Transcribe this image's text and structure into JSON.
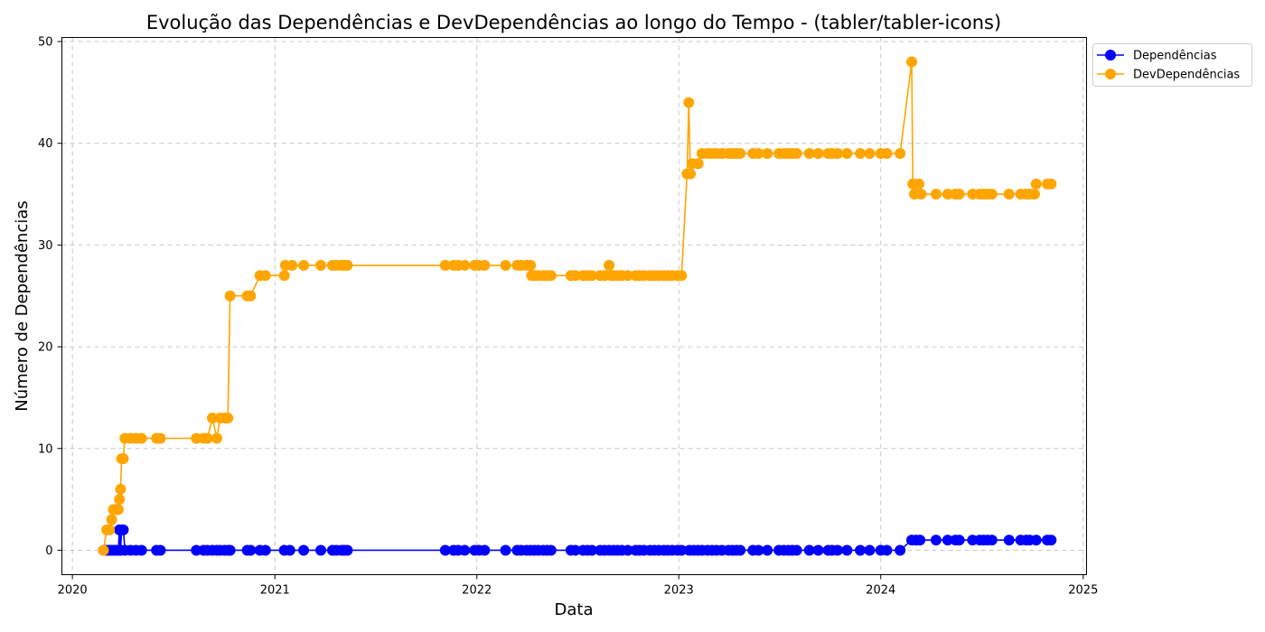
{
  "chart_data": {
    "type": "line",
    "title": "Evolução das Dependências e DevDependências ao longo do Tempo - (tabler/tabler-icons)",
    "xlabel": "Data",
    "ylabel": "Número de Dependências",
    "xlim": [
      "2019-12-13",
      "2025-01-07"
    ],
    "ylim": [
      -2.4,
      50.4
    ],
    "x_ticks": [
      "2020",
      "2021",
      "2022",
      "2023",
      "2024",
      "2025"
    ],
    "x_tick_dates": [
      "2020-01-01",
      "2021-01-01",
      "2022-01-01",
      "2023-01-01",
      "2024-01-01",
      "2025-01-01"
    ],
    "y_ticks": [
      0,
      10,
      20,
      30,
      40,
      50
    ],
    "grid": true,
    "legend_position": "outside-top-right",
    "series": [
      {
        "name": "Dependências",
        "color": "#0000ff",
        "points": [
          [
            "2020-02-26",
            0
          ],
          [
            "2020-03-03",
            0
          ],
          [
            "2020-03-08",
            0
          ],
          [
            "2020-03-12",
            0
          ],
          [
            "2020-03-16",
            0
          ],
          [
            "2020-03-20",
            0
          ],
          [
            "2020-03-24",
            0
          ],
          [
            "2020-03-26",
            2
          ],
          [
            "2020-03-28",
            0
          ],
          [
            "2020-03-30",
            2
          ],
          [
            "2020-04-02",
            2
          ],
          [
            "2020-04-05",
            0
          ],
          [
            "2020-04-15",
            0
          ],
          [
            "2020-04-25",
            0
          ],
          [
            "2020-05-05",
            0
          ],
          [
            "2020-06-01",
            0
          ],
          [
            "2020-06-08",
            0
          ],
          [
            "2020-08-12",
            0
          ],
          [
            "2020-08-25",
            0
          ],
          [
            "2020-09-01",
            0
          ],
          [
            "2020-09-10",
            0
          ],
          [
            "2020-09-18",
            0
          ],
          [
            "2020-09-24",
            0
          ],
          [
            "2020-10-02",
            0
          ],
          [
            "2020-10-08",
            0
          ],
          [
            "2020-10-12",
            0
          ],
          [
            "2020-11-12",
            0
          ],
          [
            "2020-11-18",
            0
          ],
          [
            "2020-12-05",
            0
          ],
          [
            "2020-12-15",
            0
          ],
          [
            "2021-01-18",
            0
          ],
          [
            "2021-01-28",
            0
          ],
          [
            "2021-02-22",
            0
          ],
          [
            "2021-03-25",
            0
          ],
          [
            "2021-04-15",
            0
          ],
          [
            "2021-04-22",
            0
          ],
          [
            "2021-05-01",
            0
          ],
          [
            "2021-05-06",
            0
          ],
          [
            "2021-05-12",
            0
          ],
          [
            "2021-11-05",
            0
          ],
          [
            "2021-11-20",
            0
          ],
          [
            "2021-11-28",
            0
          ],
          [
            "2021-12-10",
            0
          ],
          [
            "2021-12-28",
            0
          ],
          [
            "2022-01-05",
            0
          ],
          [
            "2022-01-15",
            0
          ],
          [
            "2022-02-22",
            0
          ],
          [
            "2022-03-15",
            0
          ],
          [
            "2022-03-22",
            0
          ],
          [
            "2022-04-01",
            0
          ],
          [
            "2022-04-08",
            0
          ],
          [
            "2022-04-15",
            0
          ],
          [
            "2022-04-22",
            0
          ],
          [
            "2022-05-01",
            0
          ],
          [
            "2022-05-08",
            0
          ],
          [
            "2022-05-15",
            0
          ],
          [
            "2022-06-20",
            0
          ],
          [
            "2022-06-28",
            0
          ],
          [
            "2022-07-12",
            0
          ],
          [
            "2022-07-20",
            0
          ],
          [
            "2022-07-28",
            0
          ],
          [
            "2022-08-12",
            0
          ],
          [
            "2022-08-20",
            0
          ],
          [
            "2022-08-28",
            0
          ],
          [
            "2022-09-05",
            0
          ],
          [
            "2022-09-12",
            0
          ],
          [
            "2022-09-20",
            0
          ],
          [
            "2022-10-01",
            0
          ],
          [
            "2022-10-15",
            0
          ],
          [
            "2022-10-22",
            0
          ],
          [
            "2022-10-30",
            0
          ],
          [
            "2022-11-10",
            0
          ],
          [
            "2022-11-18",
            0
          ],
          [
            "2022-11-26",
            0
          ],
          [
            "2022-12-05",
            0
          ],
          [
            "2022-12-12",
            0
          ],
          [
            "2022-12-20",
            0
          ],
          [
            "2022-12-30",
            0
          ],
          [
            "2023-01-06",
            0
          ],
          [
            "2023-01-20",
            0
          ],
          [
            "2023-01-28",
            0
          ],
          [
            "2023-02-05",
            0
          ],
          [
            "2023-02-12",
            0
          ],
          [
            "2023-02-22",
            0
          ],
          [
            "2023-03-02",
            0
          ],
          [
            "2023-03-10",
            0
          ],
          [
            "2023-03-20",
            0
          ],
          [
            "2023-04-01",
            0
          ],
          [
            "2023-04-08",
            0
          ],
          [
            "2023-04-15",
            0
          ],
          [
            "2023-04-22",
            0
          ],
          [
            "2023-05-15",
            0
          ],
          [
            "2023-05-25",
            0
          ],
          [
            "2023-06-10",
            0
          ],
          [
            "2023-07-01",
            0
          ],
          [
            "2023-07-10",
            0
          ],
          [
            "2023-07-18",
            0
          ],
          [
            "2023-07-25",
            0
          ],
          [
            "2023-08-02",
            0
          ],
          [
            "2023-08-25",
            0
          ],
          [
            "2023-09-10",
            0
          ],
          [
            "2023-09-28",
            0
          ],
          [
            "2023-10-05",
            0
          ],
          [
            "2023-10-15",
            0
          ],
          [
            "2023-11-01",
            0
          ],
          [
            "2023-11-25",
            0
          ],
          [
            "2023-12-12",
            0
          ],
          [
            "2024-01-01",
            0
          ],
          [
            "2024-01-12",
            0
          ],
          [
            "2024-02-05",
            0
          ],
          [
            "2024-02-26",
            1
          ],
          [
            "2024-03-05",
            1
          ],
          [
            "2024-03-12",
            1
          ],
          [
            "2024-04-10",
            1
          ],
          [
            "2024-05-01",
            1
          ],
          [
            "2024-05-15",
            1
          ],
          [
            "2024-05-22",
            1
          ],
          [
            "2024-06-15",
            1
          ],
          [
            "2024-06-28",
            1
          ],
          [
            "2024-07-05",
            1
          ],
          [
            "2024-07-12",
            1
          ],
          [
            "2024-07-20",
            1
          ],
          [
            "2024-08-20",
            1
          ],
          [
            "2024-09-10",
            1
          ],
          [
            "2024-09-20",
            1
          ],
          [
            "2024-09-26",
            1
          ],
          [
            "2024-10-08",
            1
          ],
          [
            "2024-10-28",
            1
          ],
          [
            "2024-11-04",
            1
          ]
        ]
      },
      {
        "name": "DevDependências",
        "color": "#ffa500",
        "points": [
          [
            "2020-02-26",
            0
          ],
          [
            "2020-03-03",
            2
          ],
          [
            "2020-03-08",
            2
          ],
          [
            "2020-03-12",
            3
          ],
          [
            "2020-03-15",
            4
          ],
          [
            "2020-03-20",
            4
          ],
          [
            "2020-03-24",
            4
          ],
          [
            "2020-03-26",
            5
          ],
          [
            "2020-03-28",
            6
          ],
          [
            "2020-03-30",
            9
          ],
          [
            "2020-04-02",
            9
          ],
          [
            "2020-04-05",
            11
          ],
          [
            "2020-04-15",
            11
          ],
          [
            "2020-04-25",
            11
          ],
          [
            "2020-05-05",
            11
          ],
          [
            "2020-06-01",
            11
          ],
          [
            "2020-06-08",
            11
          ],
          [
            "2020-08-12",
            11
          ],
          [
            "2020-08-25",
            11
          ],
          [
            "2020-09-01",
            11
          ],
          [
            "2020-09-10",
            13
          ],
          [
            "2020-09-18",
            11
          ],
          [
            "2020-09-24",
            13
          ],
          [
            "2020-10-02",
            13
          ],
          [
            "2020-10-08",
            13
          ],
          [
            "2020-10-12",
            25
          ],
          [
            "2020-11-12",
            25
          ],
          [
            "2020-11-18",
            25
          ],
          [
            "2020-12-05",
            27
          ],
          [
            "2020-12-15",
            27
          ],
          [
            "2021-01-18",
            27
          ],
          [
            "2021-01-20",
            28
          ],
          [
            "2021-02-01",
            28
          ],
          [
            "2021-02-22",
            28
          ],
          [
            "2021-03-25",
            28
          ],
          [
            "2021-04-15",
            28
          ],
          [
            "2021-04-22",
            28
          ],
          [
            "2021-05-01",
            28
          ],
          [
            "2021-05-06",
            28
          ],
          [
            "2021-05-12",
            28
          ],
          [
            "2021-11-05",
            28
          ],
          [
            "2021-11-20",
            28
          ],
          [
            "2021-11-28",
            28
          ],
          [
            "2021-12-10",
            28
          ],
          [
            "2021-12-28",
            28
          ],
          [
            "2022-01-05",
            28
          ],
          [
            "2022-01-15",
            28
          ],
          [
            "2022-02-22",
            28
          ],
          [
            "2022-03-15",
            28
          ],
          [
            "2022-03-22",
            28
          ],
          [
            "2022-04-01",
            28
          ],
          [
            "2022-04-08",
            28
          ],
          [
            "2022-04-10",
            27
          ],
          [
            "2022-04-15",
            27
          ],
          [
            "2022-04-22",
            27
          ],
          [
            "2022-05-01",
            27
          ],
          [
            "2022-05-08",
            27
          ],
          [
            "2022-05-15",
            27
          ],
          [
            "2022-06-20",
            27
          ],
          [
            "2022-06-28",
            27
          ],
          [
            "2022-07-12",
            27
          ],
          [
            "2022-07-20",
            27
          ],
          [
            "2022-07-28",
            27
          ],
          [
            "2022-08-12",
            27
          ],
          [
            "2022-08-20",
            27
          ],
          [
            "2022-08-28",
            28
          ],
          [
            "2022-09-01",
            27
          ],
          [
            "2022-09-05",
            27
          ],
          [
            "2022-09-12",
            27
          ],
          [
            "2022-09-20",
            27
          ],
          [
            "2022-10-01",
            27
          ],
          [
            "2022-10-15",
            27
          ],
          [
            "2022-10-22",
            27
          ],
          [
            "2022-10-30",
            27
          ],
          [
            "2022-11-10",
            27
          ],
          [
            "2022-11-18",
            27
          ],
          [
            "2022-11-26",
            27
          ],
          [
            "2022-12-05",
            27
          ],
          [
            "2022-12-12",
            27
          ],
          [
            "2022-12-20",
            27
          ],
          [
            "2022-12-30",
            27
          ],
          [
            "2023-01-06",
            27
          ],
          [
            "2023-01-16",
            37
          ],
          [
            "2023-01-19",
            44
          ],
          [
            "2023-01-22",
            37
          ],
          [
            "2023-01-25",
            38
          ],
          [
            "2023-02-05",
            38
          ],
          [
            "2023-02-12",
            39
          ],
          [
            "2023-02-22",
            39
          ],
          [
            "2023-03-02",
            39
          ],
          [
            "2023-03-10",
            39
          ],
          [
            "2023-03-20",
            39
          ],
          [
            "2023-04-01",
            39
          ],
          [
            "2023-04-08",
            39
          ],
          [
            "2023-04-15",
            39
          ],
          [
            "2023-04-22",
            39
          ],
          [
            "2023-05-15",
            39
          ],
          [
            "2023-05-25",
            39
          ],
          [
            "2023-06-10",
            39
          ],
          [
            "2023-07-01",
            39
          ],
          [
            "2023-07-10",
            39
          ],
          [
            "2023-07-18",
            39
          ],
          [
            "2023-07-25",
            39
          ],
          [
            "2023-08-02",
            39
          ],
          [
            "2023-08-25",
            39
          ],
          [
            "2023-09-10",
            39
          ],
          [
            "2023-09-28",
            39
          ],
          [
            "2023-10-05",
            39
          ],
          [
            "2023-10-15",
            39
          ],
          [
            "2023-11-01",
            39
          ],
          [
            "2023-11-25",
            39
          ],
          [
            "2023-12-12",
            39
          ],
          [
            "2024-01-01",
            39
          ],
          [
            "2024-01-12",
            39
          ],
          [
            "2024-02-05",
            39
          ],
          [
            "2024-02-26",
            48
          ],
          [
            "2024-02-28",
            36
          ],
          [
            "2024-03-02",
            35
          ],
          [
            "2024-03-10",
            36
          ],
          [
            "2024-03-14",
            35
          ],
          [
            "2024-04-10",
            35
          ],
          [
            "2024-05-01",
            35
          ],
          [
            "2024-05-15",
            35
          ],
          [
            "2024-05-22",
            35
          ],
          [
            "2024-06-15",
            35
          ],
          [
            "2024-06-28",
            35
          ],
          [
            "2024-07-05",
            35
          ],
          [
            "2024-07-12",
            35
          ],
          [
            "2024-07-20",
            35
          ],
          [
            "2024-08-20",
            35
          ],
          [
            "2024-09-10",
            35
          ],
          [
            "2024-09-20",
            35
          ],
          [
            "2024-09-26",
            35
          ],
          [
            "2024-10-05",
            35
          ],
          [
            "2024-10-08",
            36
          ],
          [
            "2024-10-28",
            36
          ],
          [
            "2024-11-04",
            36
          ]
        ]
      }
    ]
  }
}
